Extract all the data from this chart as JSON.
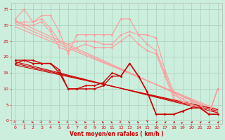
{
  "title": "Vent moyen/en rafales ( km/h )",
  "background_color": "#cceedd",
  "grid_color": "#aaccbb",
  "xlim": [
    -0.5,
    23.5
  ],
  "ylim": [
    -1,
    37
  ],
  "yticks": [
    0,
    5,
    10,
    15,
    20,
    25,
    30,
    35
  ],
  "xticks": [
    0,
    1,
    2,
    3,
    4,
    5,
    6,
    7,
    8,
    9,
    10,
    11,
    12,
    13,
    14,
    15,
    16,
    17,
    18,
    19,
    20,
    21,
    22,
    23
  ],
  "lines_light": [
    {
      "x": [
        0,
        1,
        2,
        3,
        4,
        5,
        6,
        7,
        8,
        9,
        10,
        11,
        12,
        13,
        14,
        15,
        16,
        17,
        18,
        19,
        20,
        21,
        22,
        23
      ],
      "y": [
        32,
        35,
        31,
        33,
        33,
        28,
        21,
        27,
        27,
        27,
        27,
        27,
        32,
        32,
        27,
        27,
        26,
        16,
        9,
        6,
        6,
        5,
        2,
        10
      ],
      "color": "#ff9999"
    },
    {
      "x": [
        0,
        1,
        2,
        3,
        4,
        5,
        6,
        7,
        8,
        9,
        10,
        11,
        12,
        13,
        14,
        15,
        16,
        17,
        18,
        19,
        20,
        21,
        22,
        23
      ],
      "y": [
        31,
        31,
        31,
        32,
        29,
        25,
        24,
        25,
        25,
        25,
        24,
        24,
        27,
        28,
        27,
        24,
        22,
        15,
        8,
        7,
        5,
        4,
        2,
        10
      ],
      "color": "#ff9999"
    },
    {
      "x": [
        0,
        1,
        2,
        3,
        4,
        5,
        6,
        7,
        8,
        9,
        10,
        11,
        12,
        13,
        14,
        15,
        16,
        17,
        18,
        19,
        20,
        21,
        22,
        23
      ],
      "y": [
        31,
        30,
        30,
        31,
        28,
        23,
        22,
        23,
        24,
        23,
        23,
        23,
        25,
        27,
        24,
        22,
        21,
        14,
        7,
        6,
        5,
        4,
        2,
        10
      ],
      "color": "#ff9999"
    }
  ],
  "lines_dark": [
    {
      "x": [
        0,
        1,
        2,
        3,
        4,
        5,
        6,
        7,
        8,
        9,
        10,
        11,
        12,
        13,
        14,
        15,
        16,
        17,
        18,
        19,
        20,
        21,
        22,
        23
      ],
      "y": [
        19,
        19,
        19,
        18,
        18,
        16,
        10,
        10,
        11,
        11,
        12,
        15,
        14,
        18,
        14,
        9,
        2,
        2,
        2,
        3,
        4,
        4,
        2,
        2
      ],
      "color": "#cc0000"
    },
    {
      "x": [
        0,
        1,
        2,
        3,
        4,
        5,
        6,
        7,
        8,
        9,
        10,
        11,
        12,
        13,
        14,
        15,
        16,
        17,
        18,
        19,
        20,
        21,
        22,
        23
      ],
      "y": [
        18,
        19,
        18,
        18,
        18,
        15,
        10,
        10,
        10,
        10,
        11,
        14,
        14,
        18,
        14,
        9,
        2,
        2,
        2,
        3,
        4,
        4,
        2,
        2
      ],
      "color": "#cc0000"
    }
  ],
  "trend_lines_light": [
    {
      "x0": 0,
      "y0": 31.5,
      "x1": 23,
      "y1": 2.5,
      "color": "#ff9999"
    },
    {
      "x0": 0,
      "y0": 30.5,
      "x1": 23,
      "y1": 3.0,
      "color": "#ff9999"
    },
    {
      "x0": 0,
      "y0": 29.5,
      "x1": 23,
      "y1": 3.5,
      "color": "#ff9999"
    }
  ],
  "trend_lines_dark": [
    {
      "x0": 0,
      "y0": 18.5,
      "x1": 23,
      "y1": 2.5,
      "color": "#cc0000"
    },
    {
      "x0": 0,
      "y0": 18.0,
      "x1": 23,
      "y1": 3.0,
      "color": "#cc0000"
    },
    {
      "x0": 0,
      "y0": 17.5,
      "x1": 23,
      "y1": 3.5,
      "color": "#cc0000"
    }
  ],
  "wind_arrows": "↘ ↘ → ↘ ↘ → ↘ → → ↘ → → ↘ → → ↓ ← ← ← ↗ ← ← ← ←",
  "arrow_color": "#cc0000",
  "xlabel_color": "#cc0000",
  "tick_color": "#cc0000"
}
